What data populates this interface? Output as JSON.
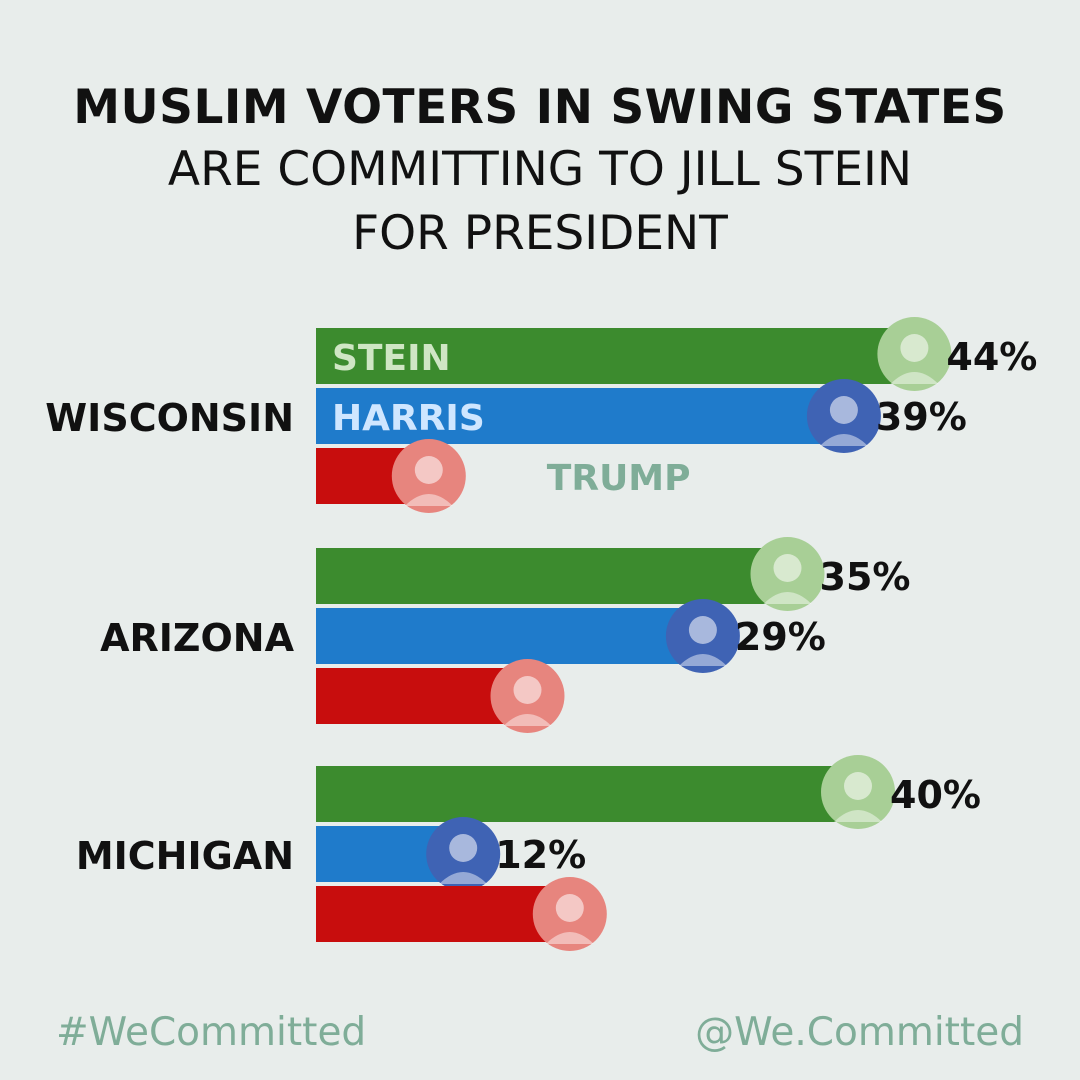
{
  "title": {
    "line1": "MUSLIM VOTERS IN SWING STATES",
    "line2": "ARE COMMITTING TO JILL STEIN",
    "line3": "FOR PRESIDENT"
  },
  "chart_data": {
    "type": "bar",
    "orientation": "horizontal",
    "categories": [
      "WISCONSIN",
      "ARIZONA",
      "MICHIGAN"
    ],
    "series": [
      {
        "name": "STEIN",
        "color": "#3c8b2e",
        "avatar_color": "#a8cf96",
        "value_labels": [
          "44%",
          "35%",
          "40%"
        ],
        "values": [
          44,
          35,
          40
        ]
      },
      {
        "name": "HARRIS",
        "color": "#1f7bcb",
        "avatar_color": "#3f63b4",
        "value_labels": [
          "39%",
          "29%",
          "12%"
        ],
        "values": [
          39,
          29,
          12
        ]
      },
      {
        "name": "TRUMP",
        "color": "#c80d0d",
        "avatar_color": "#e7857e",
        "value_labels": [
          "",
          "",
          ""
        ],
        "values": [
          8,
          15,
          18
        ]
      }
    ],
    "inline_series_labels_in": "WISCONSIN",
    "series_label_colors": {
      "STEIN": "#cfe6c4",
      "HARRIS": "#cfe6ff",
      "TRUMP": "#7fad98"
    }
  },
  "footer": {
    "hashtag": "#WeCommitted",
    "handle": "@We.Committed"
  }
}
